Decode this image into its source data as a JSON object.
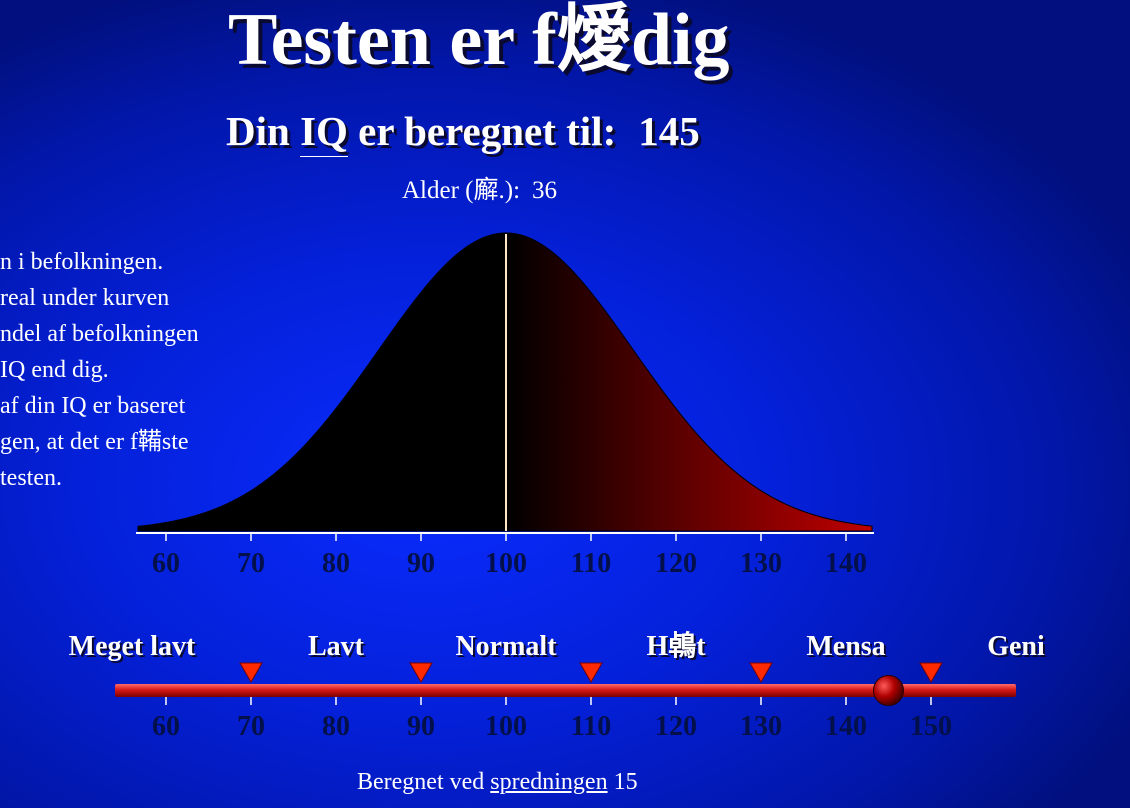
{
  "header": {
    "title": "Testen er f燰dig",
    "result_prefix": "Din",
    "result_link": "IQ",
    "result_middle": "er beregnet til:",
    "result_value": "145",
    "age_label": "Alder (廨.):",
    "age_value": "36"
  },
  "explanation": {
    "lines": [
      "n i befolkningen.",
      "real under kurven",
      "ndel af befolkningen",
      " IQ end dig.",
      "af din IQ er baseret",
      "gen, at det er f鞴ste",
      " testen."
    ]
  },
  "chart_data": {
    "type": "area",
    "distribution": "normal",
    "mean": 100,
    "sd": 15,
    "x_ticks": [
      60,
      70,
      80,
      90,
      100,
      110,
      120,
      130,
      140
    ],
    "xlim": [
      55,
      144
    ],
    "marker_x": 100,
    "fill_left": "#000000",
    "fill_right": "#c00000",
    "axis_color": "#ffffff",
    "tick_label_color": "#03104a"
  },
  "scale": {
    "bands": [
      {
        "label": "Meget lavt",
        "center": 56
      },
      {
        "label": "Lavt",
        "center": 80
      },
      {
        "label": "Normalt",
        "center": 100
      },
      {
        "label": "H鵫t",
        "center": 120
      },
      {
        "label": "Mensa",
        "center": 140
      },
      {
        "label": "Geni",
        "center": 160
      }
    ],
    "thresholds": [
      70,
      90,
      110,
      130,
      150
    ],
    "ticks": [
      60,
      70,
      80,
      90,
      100,
      110,
      120,
      130,
      140,
      150
    ],
    "user_value": 145,
    "bar_range": [
      54,
      160
    ],
    "bar_color": "#d81818",
    "marker_color": "#b00000",
    "triangle_color": "#ff2a00"
  },
  "footer": {
    "spread_prefix": "Beregnet ved",
    "spread_link": "spredningen",
    "spread_value": "15"
  }
}
